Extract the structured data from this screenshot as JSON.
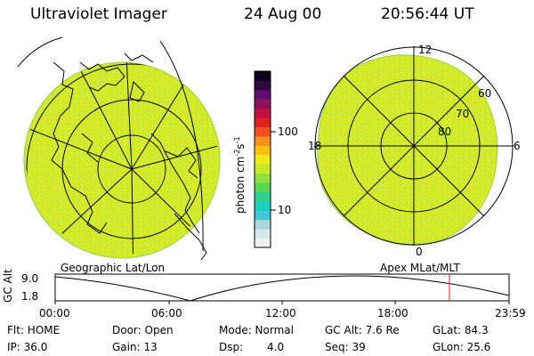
{
  "header": {
    "instrument": "Ultraviolet Imager",
    "date": "24 Aug 00",
    "time": "20:56:44 UT"
  },
  "colorbar": {
    "label_unit": "photon cm",
    "label_exp": "-2",
    "label_s": "s",
    "label_exp2": "-1",
    "ticks": [
      "100",
      "10"
    ],
    "colors": [
      "#f0f0f0",
      "#d8e8ec",
      "#a8d8dc",
      "#40c8d8",
      "#18d0c0",
      "#30d090",
      "#58d850",
      "#90e040",
      "#c8e828",
      "#f0e818",
      "#f8c010",
      "#f89020",
      "#f05020",
      "#e02020",
      "#c01040",
      "#901060",
      "#601070",
      "#300840",
      "#100020"
    ]
  },
  "left_panel": {
    "label": "Geographic Lat/Lon"
  },
  "right_panel": {
    "label": "Apex MLat/MLT",
    "mlt_labels": {
      "top": "12",
      "left": "18",
      "right": "6",
      "bottom": "0"
    },
    "lat_labels": [
      "60",
      "70",
      "80"
    ]
  },
  "timeline": {
    "y_label": "GC Alt",
    "y_ticks": [
      "9.0",
      "1.8"
    ],
    "x_ticks": [
      "00:00",
      "06:00",
      "12:00",
      "18:00",
      "23:59"
    ]
  },
  "status": {
    "flt": "Flt: HOME",
    "door": "Door: Open",
    "mode": "Mode: Normal",
    "gc_alt": "GC Alt: 7.6 Re",
    "glat": "GLat: 84.3",
    "ip": "IP: 36.0",
    "gain": "Gain: 13",
    "dsp_label": "Dsp:",
    "dsp_value": "4.0",
    "seq": "Seq: 39",
    "glon": "GLon:  25.6"
  }
}
